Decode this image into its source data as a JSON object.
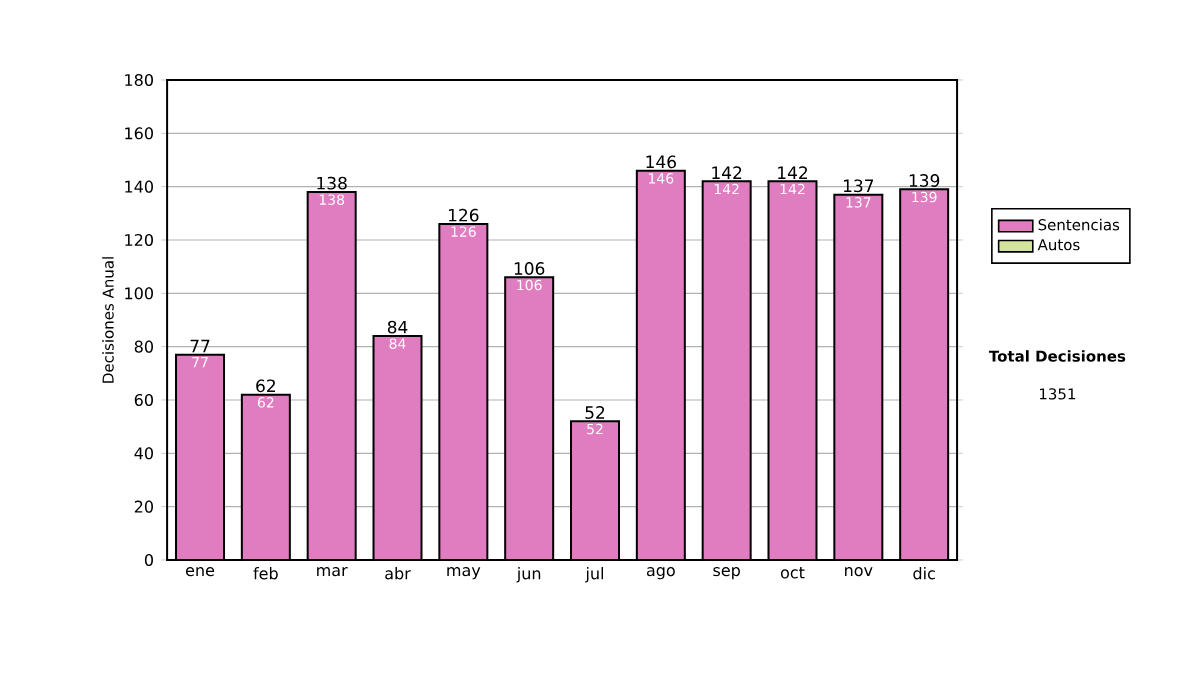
{
  "chart_data": {
    "type": "bar",
    "stacked": true,
    "categories": [
      "ene",
      "feb",
      "mar",
      "abr",
      "may",
      "jun",
      "jul",
      "ago",
      "sep",
      "oct",
      "nov",
      "dic"
    ],
    "series": [
      {
        "name": "Sentencias",
        "color": "#e07cc0",
        "values": [
          77,
          62,
          138,
          84,
          126,
          106,
          52,
          146,
          142,
          142,
          137,
          139
        ]
      },
      {
        "name": "Autos",
        "color": "#d4e49c",
        "values": [
          null,
          null,
          null,
          null,
          null,
          null,
          null,
          null,
          null,
          null,
          null,
          null
        ]
      }
    ],
    "totals": [
      "77",
      "62",
      "138",
      "84",
      "126",
      "106",
      "52",
      "146",
      "142",
      "142",
      "137",
      "139"
    ],
    "data_labels": true,
    "ylabel": "Decisiones Anual",
    "ylim": [
      0,
      180
    ],
    "yticks": [
      0,
      20,
      40,
      60,
      80,
      100,
      120,
      140,
      160,
      180
    ],
    "grid": "y",
    "legend": "right",
    "annotations": [
      "**Total Decisiones**",
      "1351"
    ]
  }
}
